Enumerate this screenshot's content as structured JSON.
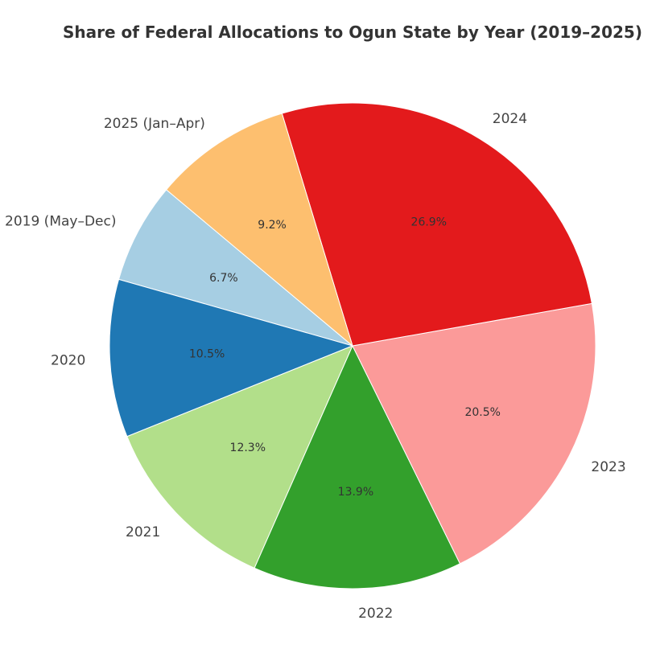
{
  "chart_data": {
    "type": "pie",
    "title": "Share of Federal Allocations to Ogun State by Year (2019–2025)",
    "start_angle_deg": 140,
    "direction": "counterclockwise",
    "slices": [
      {
        "label": "2019 (May–Dec)",
        "value": 6.7,
        "pct_label": "6.7%",
        "color": "#a6cee3"
      },
      {
        "label": "2020",
        "value": 10.5,
        "pct_label": "10.5%",
        "color": "#1f78b4"
      },
      {
        "label": "2021",
        "value": 12.3,
        "pct_label": "12.3%",
        "color": "#b2df8a"
      },
      {
        "label": "2022",
        "value": 13.9,
        "pct_label": "13.9%",
        "color": "#33a02c"
      },
      {
        "label": "2023",
        "value": 20.5,
        "pct_label": "20.5%",
        "color": "#fb9a99"
      },
      {
        "label": "2024",
        "value": 26.9,
        "pct_label": "26.9%",
        "color": "#e31a1c"
      },
      {
        "label": "2025 (Jan–Apr)",
        "value": 9.2,
        "pct_label": "9.2%",
        "color": "#fdbf6f"
      }
    ]
  }
}
